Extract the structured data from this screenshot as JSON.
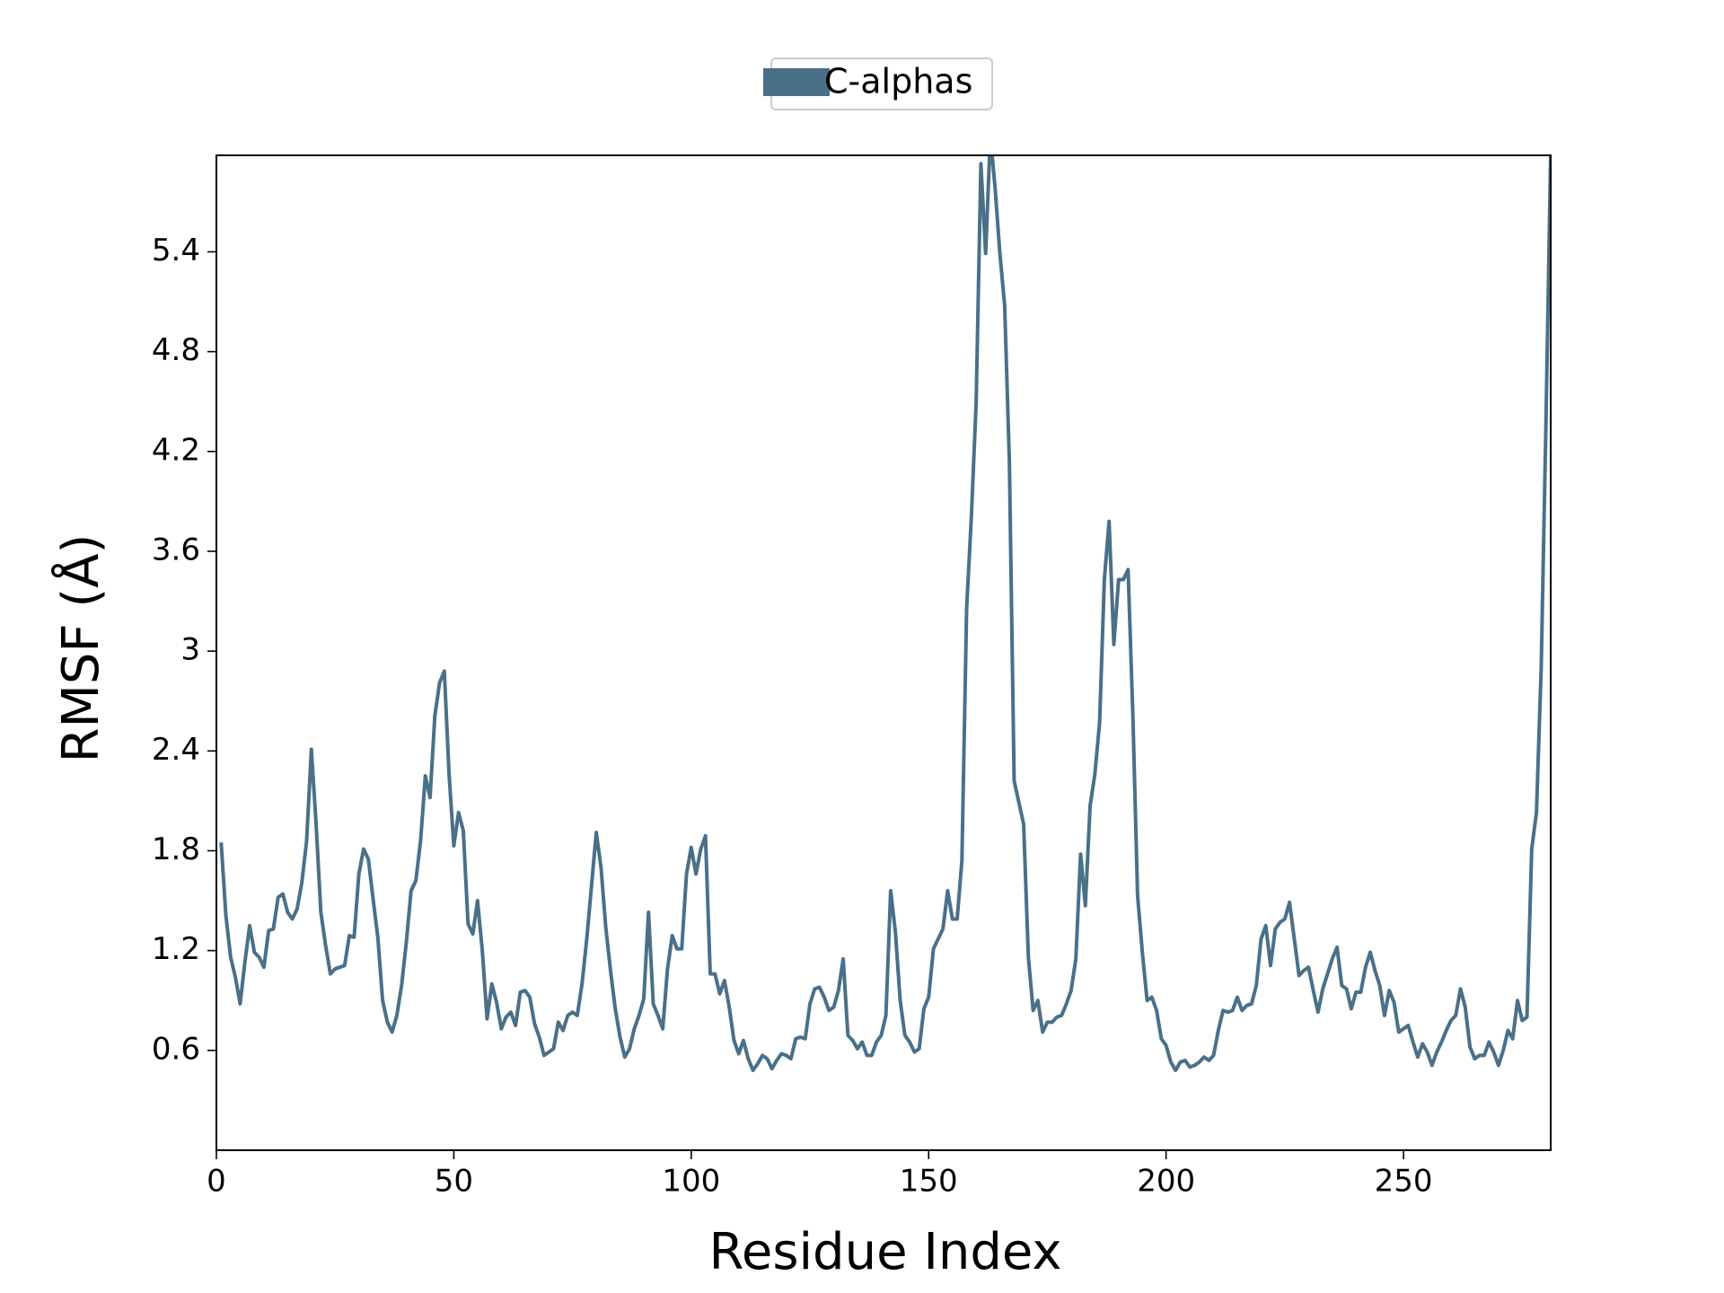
{
  "chart_data": {
    "type": "line",
    "x_label": "Residue Index",
    "y_label": "RMSF (Å)",
    "xlim": [
      0,
      281
    ],
    "ylim": [
      0,
      5.98
    ],
    "xticks": [
      0,
      50,
      100,
      150,
      200,
      250
    ],
    "yticks": [
      0.6,
      1.2,
      1.8,
      2.4,
      3.0,
      3.6,
      4.2,
      4.8,
      5.4
    ],
    "legend": "upper center",
    "x": [
      1,
      2,
      3,
      4,
      5,
      6,
      7,
      8,
      9,
      10,
      11,
      12,
      13,
      14,
      15,
      16,
      17,
      18,
      19,
      20,
      21,
      22,
      23,
      24,
      25,
      26,
      27,
      28,
      29,
      30,
      31,
      32,
      33,
      34,
      35,
      36,
      37,
      38,
      39,
      40,
      41,
      42,
      43,
      44,
      45,
      46,
      47,
      48,
      49,
      50,
      51,
      52,
      53,
      54,
      55,
      56,
      57,
      58,
      59,
      60,
      61,
      62,
      63,
      64,
      65,
      66,
      67,
      68,
      69,
      70,
      71,
      72,
      73,
      74,
      75,
      76,
      77,
      78,
      79,
      80,
      81,
      82,
      83,
      84,
      85,
      86,
      87,
      88,
      89,
      90,
      91,
      92,
      93,
      94,
      95,
      96,
      97,
      98,
      99,
      100,
      101,
      102,
      103,
      104,
      105,
      106,
      107,
      108,
      109,
      110,
      111,
      112,
      113,
      114,
      115,
      116,
      117,
      118,
      119,
      120,
      121,
      122,
      123,
      124,
      125,
      126,
      127,
      128,
      129,
      130,
      131,
      132,
      133,
      134,
      135,
      136,
      137,
      138,
      139,
      140,
      141,
      142,
      143,
      144,
      145,
      146,
      147,
      148,
      149,
      150,
      151,
      152,
      153,
      154,
      155,
      156,
      157,
      158,
      159,
      160,
      161,
      162,
      163,
      164,
      165,
      166,
      167,
      168,
      169,
      170,
      171,
      172,
      173,
      174,
      175,
      176,
      177,
      178,
      179,
      180,
      181,
      182,
      183,
      184,
      185,
      186,
      187,
      188,
      189,
      190,
      191,
      192,
      193,
      194,
      195,
      196,
      197,
      198,
      199,
      200,
      201,
      202,
      203,
      204,
      205,
      206,
      207,
      208,
      209,
      210,
      211,
      212,
      213,
      214,
      215,
      216,
      217,
      218,
      219,
      220,
      221,
      222,
      223,
      224,
      225,
      226,
      227,
      228,
      229,
      230,
      231,
      232,
      233,
      234,
      235,
      236,
      237,
      238,
      239,
      240,
      241,
      242,
      243,
      244,
      245,
      246,
      247,
      248,
      249,
      250,
      251,
      252,
      253,
      254,
      255,
      256,
      257,
      258,
      259,
      260,
      261,
      262,
      263,
      264,
      265,
      266,
      267,
      268,
      269,
      270,
      271,
      272,
      273,
      274,
      275,
      276,
      277,
      278,
      279,
      280,
      281
    ],
    "series": [
      {
        "name": "C-alphas",
        "color": "#4a7089",
        "values": [
          1.85,
          1.41,
          1.16,
          1.04,
          0.88,
          1.13,
          1.35,
          1.19,
          1.16,
          1.1,
          1.32,
          1.33,
          1.52,
          1.54,
          1.43,
          1.39,
          1.45,
          1.61,
          1.86,
          2.41,
          1.96,
          1.43,
          1.23,
          1.06,
          1.09,
          1.1,
          1.11,
          1.29,
          1.28,
          1.66,
          1.81,
          1.75,
          1.51,
          1.28,
          0.9,
          0.77,
          0.71,
          0.81,
          0.99,
          1.25,
          1.56,
          1.62,
          1.86,
          2.25,
          2.12,
          2.61,
          2.81,
          2.88,
          2.26,
          1.83,
          2.03,
          1.92,
          1.36,
          1.3,
          1.5,
          1.2,
          0.79,
          1.0,
          0.89,
          0.73,
          0.8,
          0.83,
          0.75,
          0.95,
          0.96,
          0.92,
          0.76,
          0.68,
          0.57,
          0.59,
          0.61,
          0.77,
          0.72,
          0.81,
          0.83,
          0.81,
          1.0,
          1.27,
          1.59,
          1.91,
          1.7,
          1.34,
          1.08,
          0.85,
          0.68,
          0.56,
          0.61,
          0.73,
          0.81,
          0.91,
          1.43,
          0.88,
          0.81,
          0.73,
          1.09,
          1.29,
          1.21,
          1.21,
          1.66,
          1.82,
          1.66,
          1.81,
          1.89,
          1.06,
          1.06,
          0.94,
          1.02,
          0.86,
          0.66,
          0.58,
          0.66,
          0.55,
          0.48,
          0.52,
          0.57,
          0.55,
          0.49,
          0.54,
          0.58,
          0.57,
          0.55,
          0.67,
          0.68,
          0.67,
          0.88,
          0.97,
          0.98,
          0.92,
          0.84,
          0.86,
          0.96,
          1.15,
          0.69,
          0.66,
          0.61,
          0.65,
          0.57,
          0.57,
          0.65,
          0.69,
          0.81,
          1.56,
          1.31,
          0.9,
          0.69,
          0.65,
          0.59,
          0.61,
          0.85,
          0.92,
          1.21,
          1.27,
          1.33,
          1.56,
          1.39,
          1.39,
          1.74,
          3.26,
          3.81,
          4.49,
          5.93,
          5.39,
          6.1,
          5.78,
          5.39,
          5.08,
          4.14,
          2.22,
          2.09,
          1.96,
          1.16,
          0.84,
          0.9,
          0.71,
          0.77,
          0.77,
          0.8,
          0.81,
          0.88,
          0.96,
          1.15,
          1.78,
          1.47,
          2.07,
          2.26,
          2.57,
          3.43,
          3.78,
          3.04,
          3.43,
          3.43,
          3.49,
          2.62,
          1.53,
          1.19,
          0.9,
          0.92,
          0.84,
          0.67,
          0.63,
          0.53,
          0.48,
          0.53,
          0.54,
          0.5,
          0.51,
          0.53,
          0.56,
          0.54,
          0.57,
          0.72,
          0.84,
          0.83,
          0.84,
          0.92,
          0.84,
          0.87,
          0.88,
          0.99,
          1.27,
          1.35,
          1.11,
          1.33,
          1.37,
          1.39,
          1.49,
          1.27,
          1.05,
          1.08,
          1.1,
          0.96,
          0.83,
          0.97,
          1.06,
          1.15,
          1.22,
          0.99,
          0.97,
          0.85,
          0.95,
          0.95,
          1.1,
          1.19,
          1.08,
          0.99,
          0.81,
          0.96,
          0.89,
          0.71,
          0.73,
          0.75,
          0.65,
          0.56,
          0.64,
          0.59,
          0.51,
          0.59,
          0.65,
          0.72,
          0.78,
          0.81,
          0.97,
          0.86,
          0.62,
          0.55,
          0.57,
          0.57,
          0.65,
          0.59,
          0.51,
          0.6,
          0.72,
          0.67,
          0.9,
          0.78,
          0.8,
          1.81,
          2.03,
          2.9,
          4.37,
          6.0
        ]
      }
    ]
  }
}
